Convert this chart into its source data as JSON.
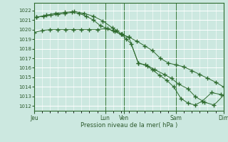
{
  "background_color": "#cce8e0",
  "plot_bg": "#cce8e0",
  "grid_color": "#ffffff",
  "line_color": "#2d6a2d",
  "marker_color": "#2d6a2d",
  "ylabel_ticks": [
    1012,
    1013,
    1014,
    1015,
    1016,
    1017,
    1018,
    1019,
    1020,
    1021,
    1022
  ],
  "ylim": [
    1011.5,
    1022.8
  ],
  "xlabel": "Pression niveau de la mer( hPa )",
  "xtick_labels": [
    "Jeu",
    "Lun",
    "Ven",
    "Sam",
    "Dim"
  ],
  "xtick_positions": [
    0,
    3.0,
    3.8,
    6.0,
    8.0
  ],
  "series1_x": [
    0,
    0.33,
    0.67,
    1.0,
    1.33,
    1.67,
    2.0,
    2.33,
    2.67,
    3.0,
    3.33,
    3.67,
    4.0,
    4.33,
    4.67,
    5.0,
    5.33,
    5.67,
    6.0,
    6.33,
    6.67,
    7.0,
    7.33,
    7.67,
    8.0
  ],
  "series1_y": [
    1019.7,
    1019.9,
    1020.0,
    1020.0,
    1020.0,
    1020.0,
    1020.0,
    1020.0,
    1020.0,
    1020.1,
    1019.9,
    1019.5,
    1019.2,
    1018.8,
    1018.3,
    1017.8,
    1017.0,
    1016.5,
    1016.3,
    1016.1,
    1015.7,
    1015.3,
    1014.9,
    1014.5,
    1014.0
  ],
  "series2_x": [
    0.1,
    0.4,
    0.7,
    1.0,
    1.3,
    1.6,
    1.9,
    2.2,
    2.5,
    2.8,
    3.1,
    3.4,
    3.7,
    4.0,
    4.4,
    4.8,
    5.1,
    5.5,
    5.8,
    6.1,
    6.5,
    6.8,
    7.2,
    7.6,
    8.0
  ],
  "series2_y": [
    1021.3,
    1021.4,
    1021.5,
    1021.6,
    1021.7,
    1021.8,
    1021.7,
    1021.4,
    1021.0,
    1020.4,
    1020.1,
    1019.8,
    1019.5,
    1019.2,
    1016.5,
    1016.2,
    1015.8,
    1015.3,
    1014.9,
    1014.3,
    1013.8,
    1013.0,
    1012.4,
    1012.1,
    1013.1
  ],
  "series3_x": [
    0.1,
    0.5,
    0.9,
    1.3,
    1.7,
    2.1,
    2.5,
    2.9,
    3.3,
    3.5,
    3.7,
    3.9,
    4.1,
    4.4,
    4.7,
    5.0,
    5.3,
    5.6,
    5.9,
    6.2,
    6.5,
    6.8,
    7.1,
    7.5,
    7.9
  ],
  "series3_y": [
    1021.3,
    1021.5,
    1021.7,
    1021.8,
    1021.9,
    1021.7,
    1021.4,
    1020.9,
    1020.2,
    1019.9,
    1019.5,
    1019.0,
    1018.5,
    1016.5,
    1016.3,
    1015.8,
    1015.2,
    1014.7,
    1014.0,
    1012.8,
    1012.3,
    1012.1,
    1012.5,
    1013.4,
    1013.2
  ],
  "total_days": 8,
  "vline_positions": [
    0,
    3.0,
    3.8,
    6.0,
    8.0
  ]
}
